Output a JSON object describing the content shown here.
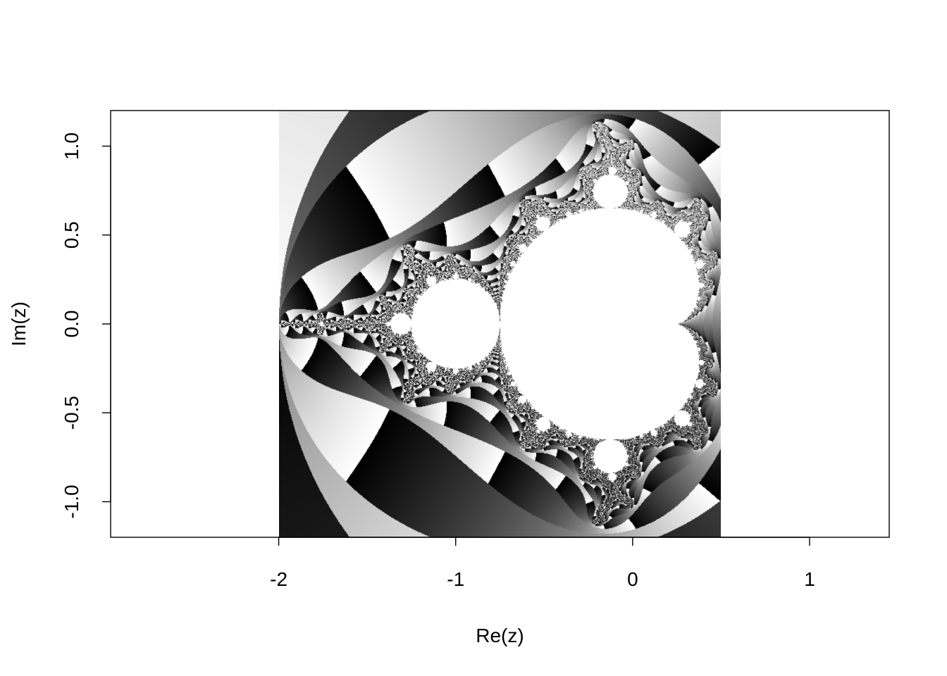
{
  "chart_data": {
    "type": "heatmap",
    "title": "",
    "xlabel": "Re(z)",
    "ylabel": "Im(z)",
    "xlim": [
      -2.95,
      1.45
    ],
    "ylim": [
      -1.2,
      1.2
    ],
    "image_extent": {
      "x": [
        -2,
        0.5
      ],
      "y": [
        -1.2,
        1.2
      ]
    },
    "x_ticks": [
      {
        "value": -2,
        "label": "-2"
      },
      {
        "value": -1,
        "label": "-1"
      },
      {
        "value": 0,
        "label": "0"
      },
      {
        "value": 1,
        "label": "1"
      }
    ],
    "y_ticks": [
      {
        "value": -1.0,
        "label": "-1.0"
      },
      {
        "value": -0.5,
        "label": "-0.5"
      },
      {
        "value": 0.0,
        "label": "0.0"
      },
      {
        "value": 0.5,
        "label": "0.5"
      },
      {
        "value": 1.0,
        "label": "1.0"
      }
    ],
    "grid": false,
    "colormap": "grayscale (cyclic, escape-time)",
    "set_color": "#ffffff",
    "escape_colors": [
      "#000000",
      "#ffffff"
    ]
  }
}
